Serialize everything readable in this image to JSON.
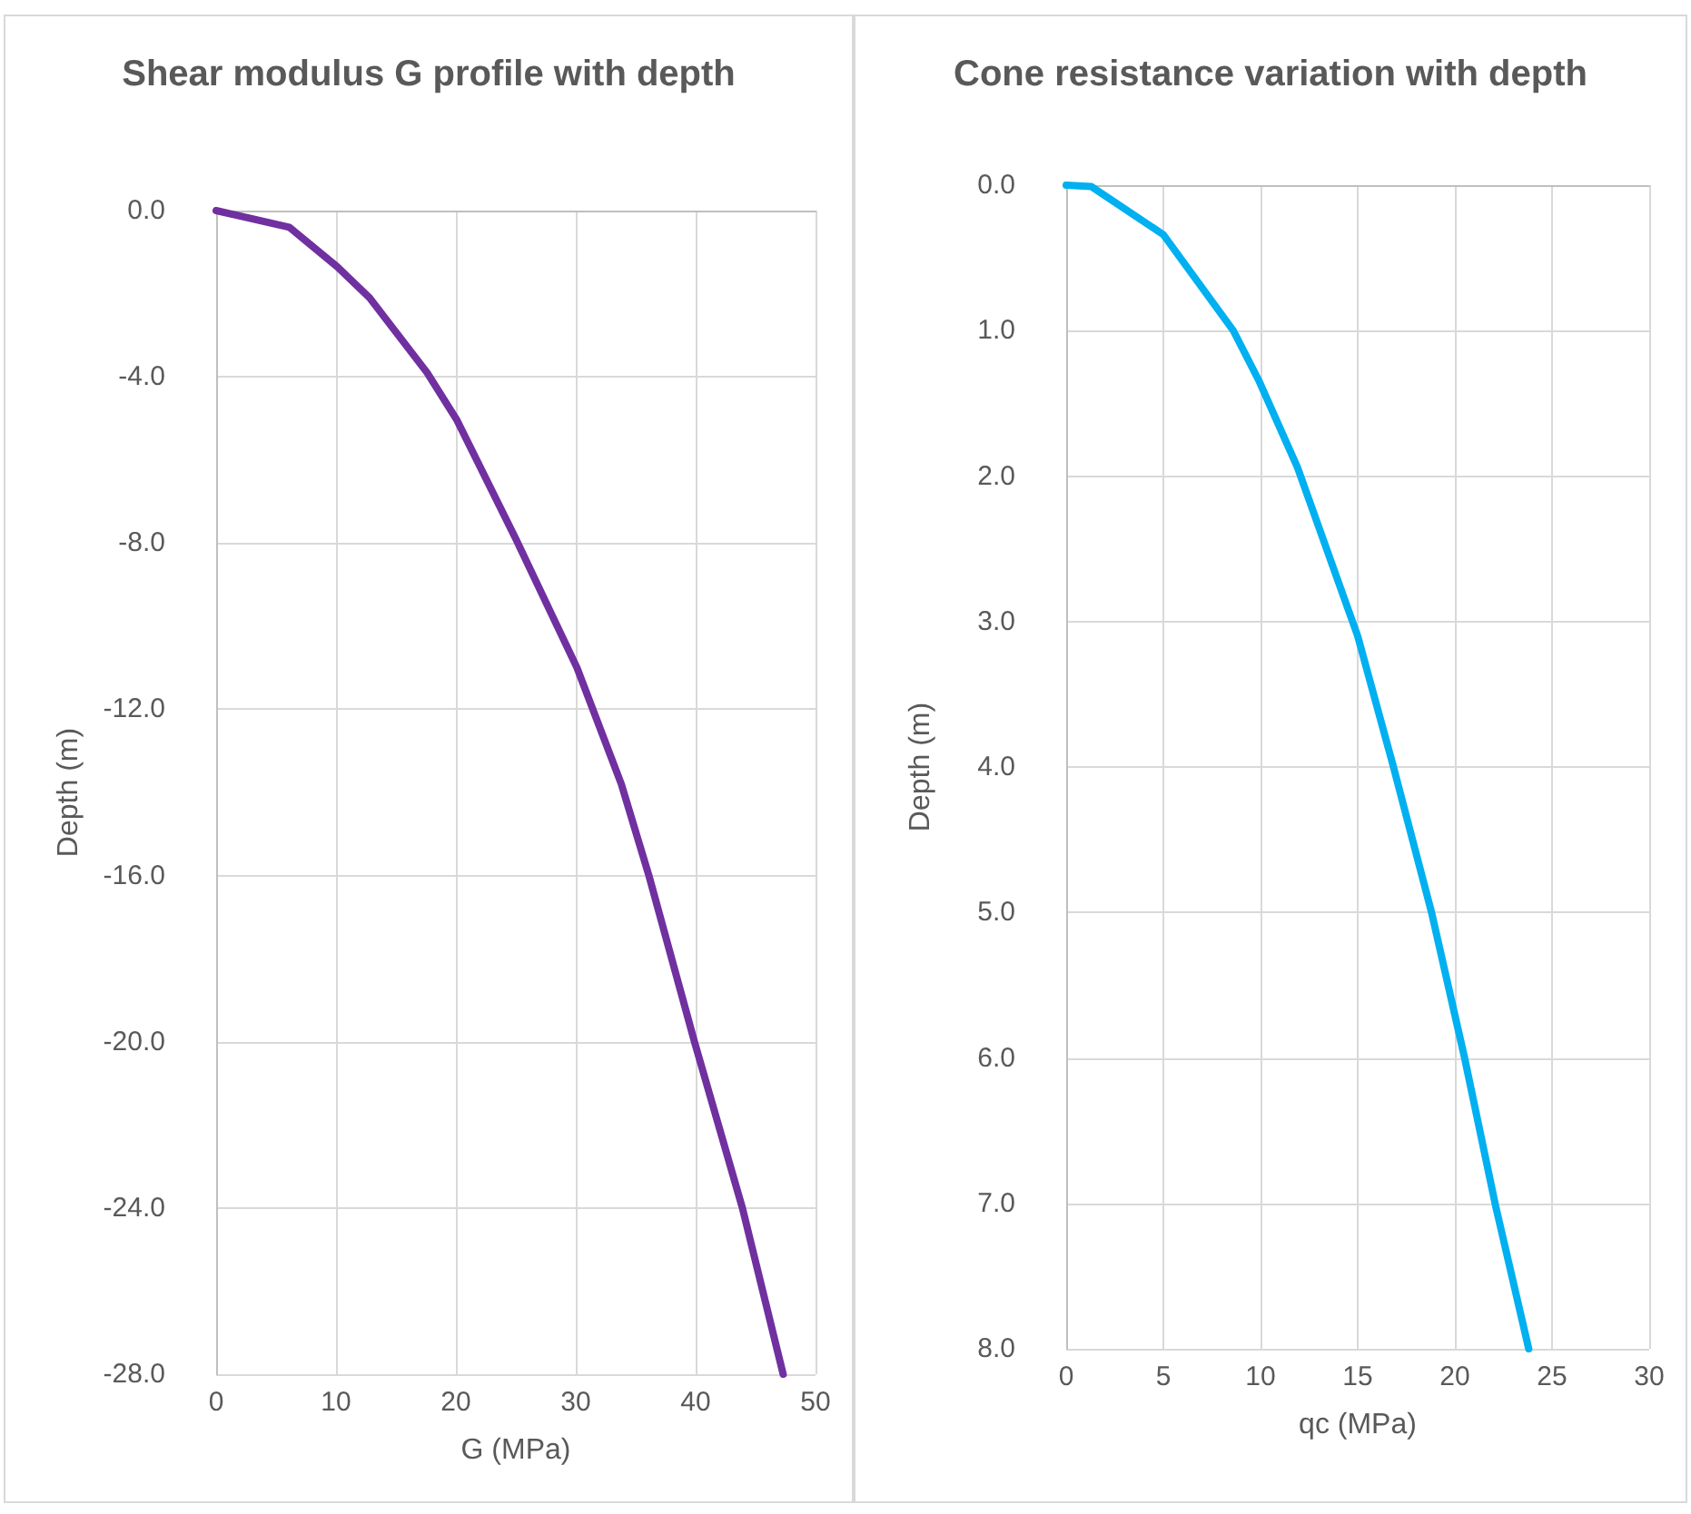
{
  "chart_data": [
    {
      "type": "line",
      "title": "Shear modulus G profile with depth",
      "xlabel": "G (MPa)",
      "ylabel": "Depth (m)",
      "series": [
        {
          "color": "#7030a0",
          "x": [
            0,
            6.1,
            10.1,
            12.8,
            17.6,
            20.1,
            25,
            30.1,
            33.8,
            36.1,
            39.9,
            43.9,
            47.3
          ],
          "values": [
            0,
            -0.4,
            -1.35,
            -2.1,
            -3.9,
            -5.05,
            -7.9,
            -11.0,
            -13.8,
            -16.0,
            -20.0,
            -24.0,
            -28.0
          ]
        }
      ],
      "xlim": [
        0,
        50
      ],
      "xticks": [
        0,
        10,
        20,
        30,
        40,
        50
      ],
      "ylim": [
        -28,
        0
      ],
      "yticks": [
        {
          "value": 0,
          "label": "0.0"
        },
        {
          "value": -4,
          "label": "-4.0"
        },
        {
          "value": -8,
          "label": "-8.0"
        },
        {
          "value": -12,
          "label": "-12.0"
        },
        {
          "value": -16,
          "label": "-16.0"
        },
        {
          "value": -20,
          "label": "-20.0"
        },
        {
          "value": -24,
          "label": "-24.0"
        },
        {
          "value": -28,
          "label": "-28.0"
        }
      ],
      "grid": true,
      "marker": "none",
      "line_style": "solid"
    },
    {
      "type": "line",
      "title": "Cone resistance variation with depth",
      "xlabel": "qc (MPa)",
      "ylabel": "Depth (m)",
      "series": [
        {
          "color": "#00b0f0",
          "x": [
            0,
            1.3,
            5.0,
            8.6,
            9.9,
            11.9,
            15.0,
            16.8,
            18.8,
            20.5,
            22.1,
            23.8
          ],
          "values": [
            0,
            0.01,
            0.34,
            1.0,
            1.34,
            1.94,
            3.1,
            3.98,
            5.0,
            6.0,
            7.02,
            8.0
          ]
        }
      ],
      "xlim": [
        0,
        30
      ],
      "xticks": [
        0,
        5,
        10,
        15,
        20,
        25,
        30
      ],
      "ylim": [
        8,
        0
      ],
      "yticks": [
        {
          "value": 0,
          "label": "0.0"
        },
        {
          "value": 1,
          "label": "1.0"
        },
        {
          "value": 2,
          "label": "2.0"
        },
        {
          "value": 3,
          "label": "3.0"
        },
        {
          "value": 4,
          "label": "4.0"
        },
        {
          "value": 5,
          "label": "5.0"
        },
        {
          "value": 6,
          "label": "6.0"
        },
        {
          "value": 7,
          "label": "7.0"
        },
        {
          "value": 8,
          "label": "8.0"
        }
      ],
      "grid": true,
      "marker": "none",
      "line_style": "solid"
    }
  ]
}
